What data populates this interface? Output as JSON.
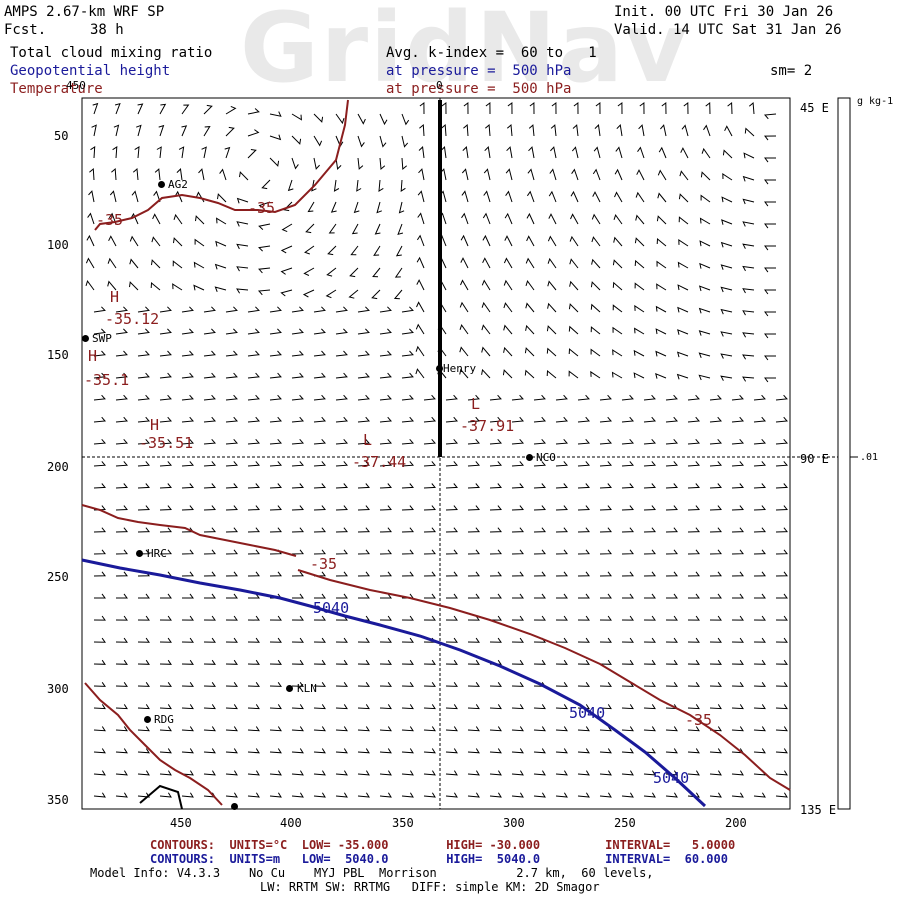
{
  "header": {
    "watermark": "GridNav",
    "model_name": "AMPS 2.67-km WRF SP",
    "fcst_label": "Fcst.",
    "fcst_value": "38 h",
    "init": "Init. 00 UTC Fri 30 Jan 26",
    "valid": "Valid. 14 UTC Sat 31 Jan 26",
    "field1": "Total cloud mixing ratio",
    "field2": "Geopotential height",
    "field3": "Temperature",
    "avg_kindex": "Avg. k-index =  60 to   1",
    "pressure1": "at pressure =  500 hPa",
    "pressure2": "at pressure =  500 hPa",
    "sm": "sm= 2"
  },
  "axes": {
    "y_ticks": [
      "50",
      "100",
      "150",
      "200",
      "250",
      "300",
      "350"
    ],
    "x_ticks": [
      "450",
      "400",
      "350",
      "300",
      "250",
      "200"
    ],
    "top_tick": "450",
    "top_zero": "0",
    "right_lon": [
      "45 E",
      "90 E",
      "135 E"
    ]
  },
  "colorbar": {
    "unit": "g kg-1",
    "value": ".01"
  },
  "stations": [
    {
      "name": "AG2"
    },
    {
      "name": "SWP"
    },
    {
      "name": "Henry"
    },
    {
      "name": "NCO"
    },
    {
      "name": "HRC"
    },
    {
      "name": "KLN"
    },
    {
      "name": "RDG"
    }
  ],
  "contour_labels": {
    "temps": [
      "-35",
      "-35",
      "-35",
      "-35"
    ],
    "heights": [
      "5040",
      "5040",
      "5040"
    ],
    "highs": [
      {
        "letter": "H",
        "value": "-35.12"
      },
      {
        "letter": "H",
        "value": "-35.1"
      },
      {
        "letter": "H",
        "value": "-35.51"
      }
    ],
    "lows": [
      {
        "letter": "L",
        "value": "-37.44"
      },
      {
        "letter": "L",
        "value": "-37.91"
      }
    ]
  },
  "footer": {
    "line1": "CONTOURS:  UNITS=°C  LOW= -35.000        HIGH= -30.000         INTERVAL=   5.0000",
    "line2": "CONTOURS:  UNITS=m   LOW=  5040.0        HIGH=  5040.0         INTERVAL=  60.000",
    "line3": "Model Info: V4.3.3    No Cu    MYJ PBL  Morrison           2.7 km,  60 levels,",
    "line4": "LW: RRTM SW: RRTMG   DIFF: simple KM: 2D Smagor"
  },
  "colors": {
    "temperature": "#8b1e1e",
    "height": "#1a1a9a",
    "barbs": "#000000"
  }
}
